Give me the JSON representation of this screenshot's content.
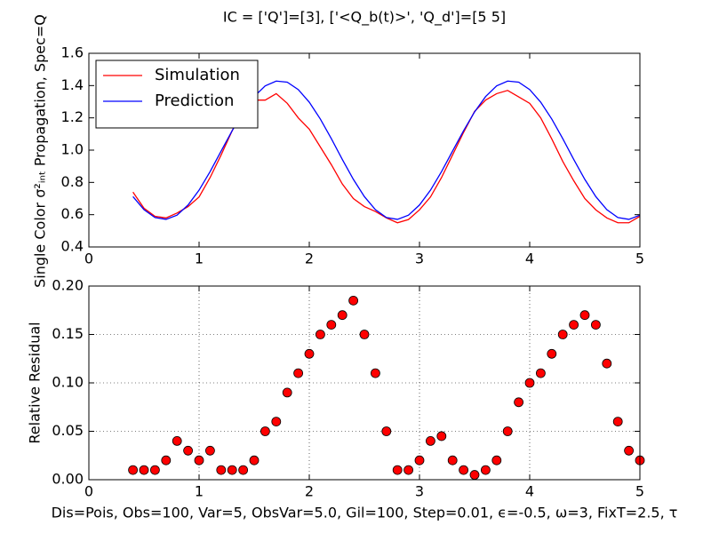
{
  "chart_data": [
    {
      "type": "line",
      "title": "IC = ['Q']=[3], ['<Q_b(t)>', 'Q_d']=[5 5]",
      "y_label": "Single Color σ²ᵢₙₜ  Propagation, Spec=Q",
      "x": [
        0.4,
        0.5,
        0.6,
        0.7,
        0.8,
        0.9,
        1.0,
        1.1,
        1.2,
        1.3,
        1.4,
        1.5,
        1.6,
        1.7,
        1.8,
        1.9,
        2.0,
        2.1,
        2.2,
        2.3,
        2.4,
        2.5,
        2.6,
        2.7,
        2.8,
        2.9,
        3.0,
        3.1,
        3.2,
        3.3,
        3.4,
        3.5,
        3.6,
        3.7,
        3.8,
        3.9,
        4.0,
        4.1,
        4.2,
        4.3,
        4.4,
        4.5,
        4.6,
        4.7,
        4.8,
        4.9,
        5.0
      ],
      "series": [
        {
          "name": "Simulation",
          "color": "#ff0000",
          "values": [
            0.74,
            0.64,
            0.59,
            0.58,
            0.61,
            0.65,
            0.71,
            0.83,
            0.97,
            1.12,
            1.25,
            1.31,
            1.31,
            1.35,
            1.29,
            1.2,
            1.13,
            1.02,
            0.91,
            0.79,
            0.7,
            0.65,
            0.62,
            0.58,
            0.55,
            0.57,
            0.63,
            0.71,
            0.83,
            0.97,
            1.11,
            1.24,
            1.31,
            1.35,
            1.37,
            1.33,
            1.29,
            1.2,
            1.07,
            0.93,
            0.81,
            0.7,
            0.63,
            0.58,
            0.55,
            0.55,
            0.59
          ]
        },
        {
          "name": "Prediction",
          "color": "#0000ff",
          "values": [
            0.712,
            0.631,
            0.582,
            0.571,
            0.597,
            0.66,
            0.752,
            0.867,
            0.994,
            1.12,
            1.237,
            1.332,
            1.398,
            1.428,
            1.421,
            1.375,
            1.297,
            1.193,
            1.071,
            0.942,
            0.819,
            0.712,
            0.631,
            0.582,
            0.571,
            0.597,
            0.66,
            0.752,
            0.867,
            0.994,
            1.12,
            1.237,
            1.332,
            1.398,
            1.428,
            1.421,
            1.375,
            1.297,
            1.193,
            1.071,
            0.942,
            0.819,
            0.712,
            0.631,
            0.582,
            0.571,
            0.597
          ]
        }
      ],
      "xlim": [
        0,
        5
      ],
      "xticks": [
        0,
        1,
        2,
        3,
        4,
        5
      ],
      "ylim": [
        0.4,
        1.6
      ],
      "yticks": [
        0.4,
        0.6,
        0.8,
        {
          "value": 1,
          "label": "1.0"
        },
        1.2,
        1.4,
        1.6
      ],
      "grid": false,
      "legend": "upper-left"
    },
    {
      "type": "scatter",
      "x_label": "Dis=Pois, Obs=100, Var=5, ObsVar=5.0, Gil=100, Step=0.01, ϵ=-0.5, ω=3, FixT=2.5, τ",
      "y_label": "Relative Residual",
      "x": [
        0.4,
        0.5,
        0.6,
        0.7,
        0.8,
        0.9,
        1.0,
        1.1,
        1.2,
        1.3,
        1.4,
        1.5,
        1.6,
        1.7,
        1.8,
        1.9,
        2.0,
        2.1,
        2.2,
        2.3,
        2.4,
        2.5,
        2.6,
        2.7,
        2.8,
        2.9,
        3.0,
        3.1,
        3.2,
        3.3,
        3.4,
        3.5,
        3.6,
        3.7,
        3.8,
        3.9,
        4.0,
        4.1,
        4.2,
        4.3,
        4.4,
        4.5,
        4.6,
        4.7,
        4.8,
        4.9,
        5.0
      ],
      "values": [
        0.01,
        0.01,
        0.01,
        0.02,
        0.04,
        0.03,
        0.02,
        0.03,
        0.01,
        0.01,
        0.01,
        0.02,
        0.05,
        0.06,
        0.09,
        0.11,
        0.13,
        0.15,
        0.16,
        0.17,
        0.185,
        0.15,
        0.11,
        0.05,
        0.01,
        0.01,
        0.02,
        0.04,
        0.045,
        0.02,
        0.01,
        0.005,
        0.01,
        0.02,
        0.05,
        0.08,
        0.1,
        0.11,
        0.13,
        0.15,
        0.16,
        0.17,
        0.16,
        0.12,
        0.06,
        0.03,
        0.02
      ],
      "color": "#ff0000",
      "xlim": [
        0,
        5
      ],
      "xticks": [
        0,
        1,
        2,
        3,
        4,
        5
      ],
      "ylim": [
        0,
        0.2
      ],
      "yticks": [
        {
          "value": 0,
          "label": "0.00"
        },
        {
          "value": 0.05,
          "label": "0.05"
        },
        {
          "value": 0.1,
          "label": "0.10"
        },
        {
          "value": 0.15,
          "label": "0.15"
        },
        {
          "value": 0.2,
          "label": "0.20"
        }
      ],
      "grid": true
    }
  ]
}
